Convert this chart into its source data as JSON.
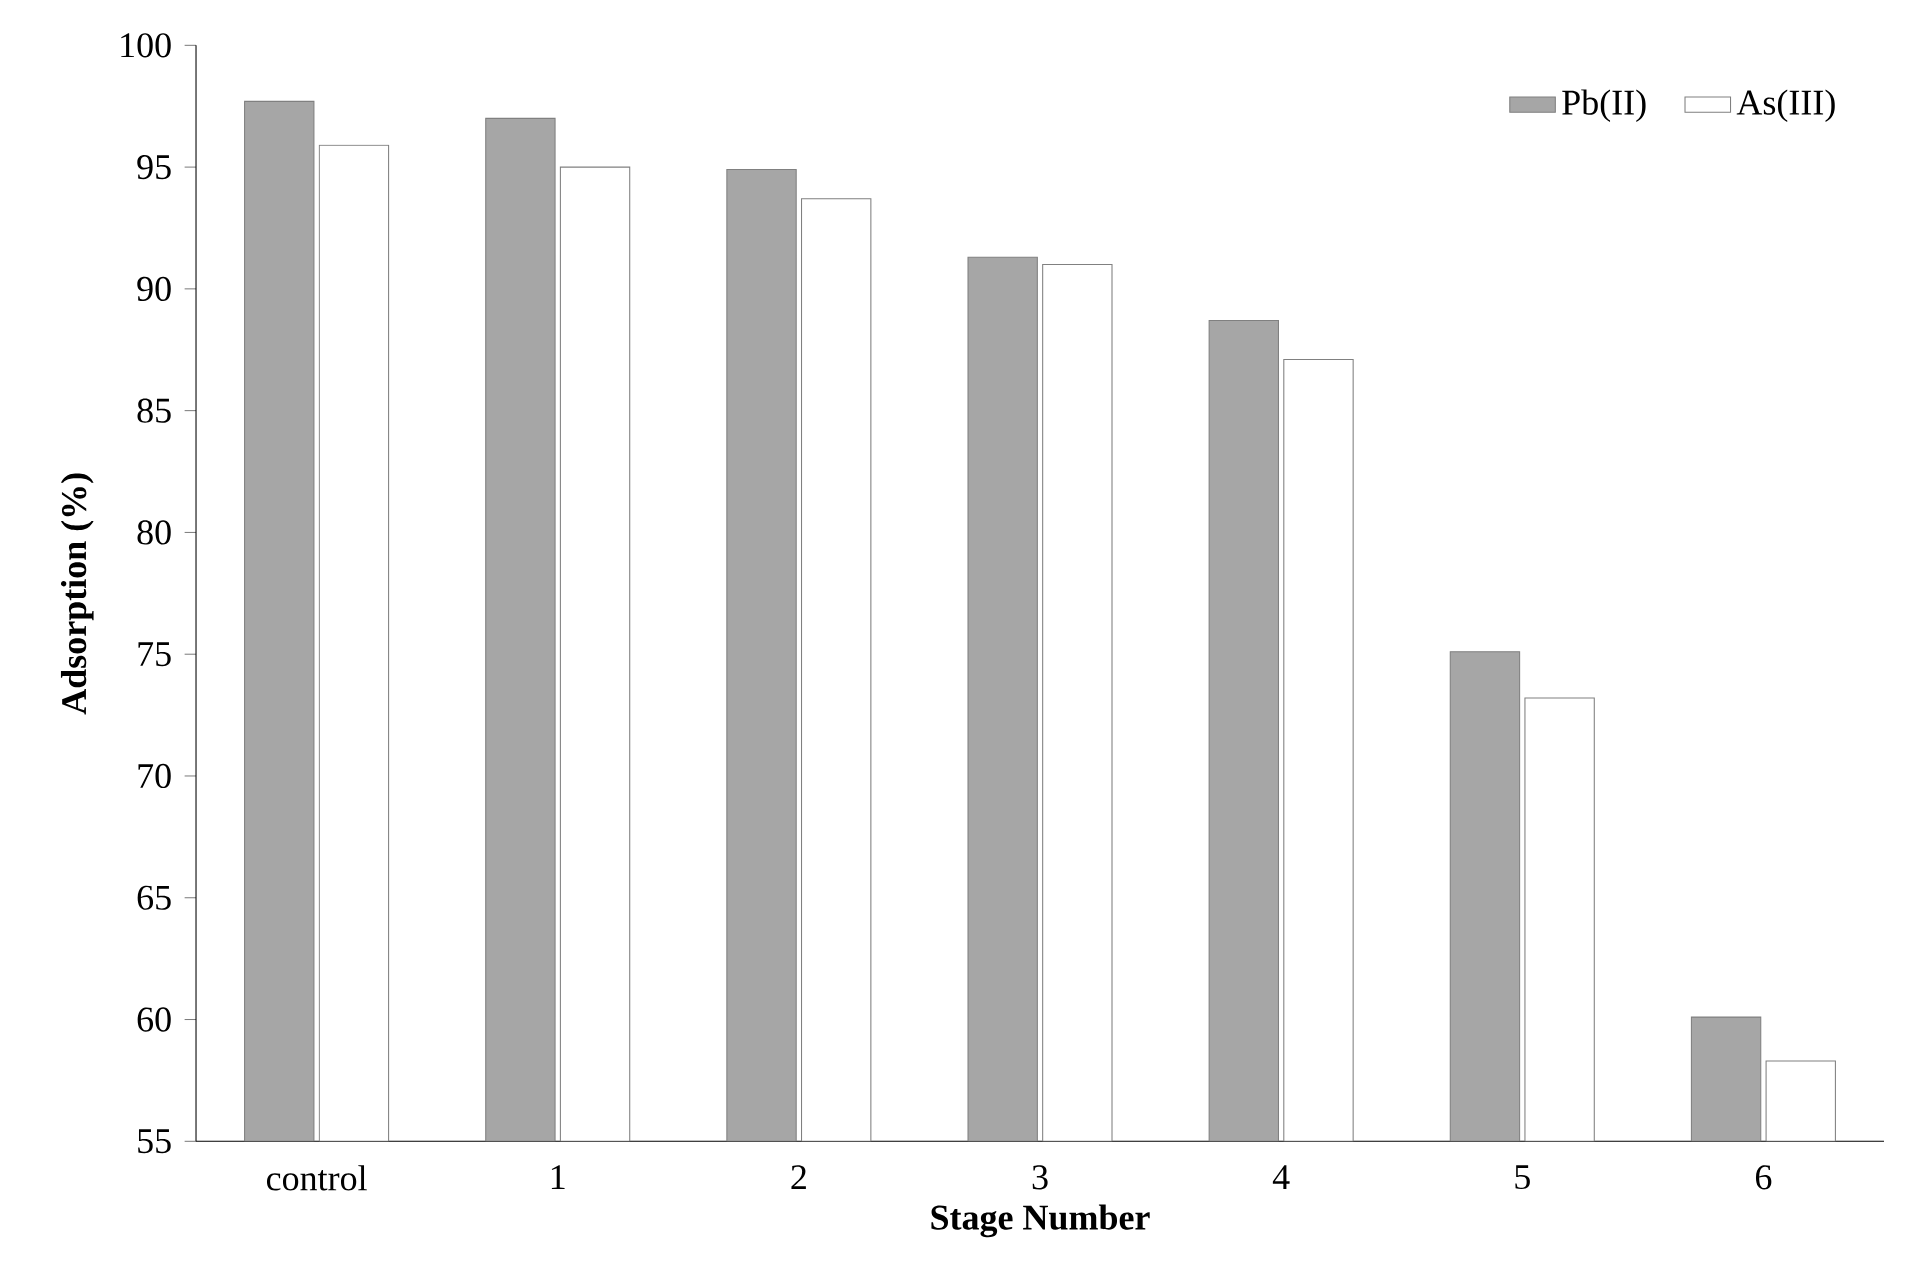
{
  "chart_data": {
    "type": "bar",
    "xlabel": "Stage Number",
    "ylabel": "Adsorption (%)",
    "categories": [
      "control",
      "1",
      "2",
      "3",
      "4",
      "5",
      "6"
    ],
    "series": [
      {
        "name": "Pb(II)",
        "color": "#a6a6a6",
        "values": [
          97.7,
          97.0,
          94.9,
          91.3,
          88.7,
          75.1,
          60.1
        ]
      },
      {
        "name": "As(III)",
        "color": "#ffffff",
        "values": [
          95.9,
          95.0,
          93.7,
          91.0,
          87.1,
          73.2,
          58.3
        ]
      }
    ],
    "ylim": [
      55,
      100
    ],
    "yticks": [
      55,
      60,
      65,
      70,
      75,
      80,
      85,
      90,
      95,
      100
    ],
    "legend": "top right",
    "grid": false
  }
}
